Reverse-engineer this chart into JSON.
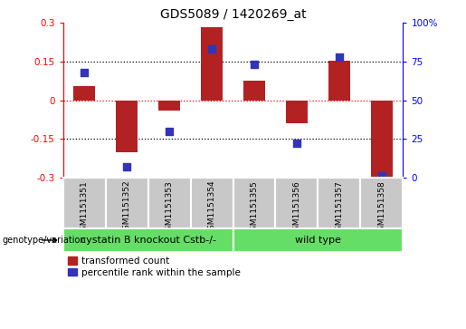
{
  "title": "GDS5089 / 1420269_at",
  "samples": [
    "GSM1151351",
    "GSM1151352",
    "GSM1151353",
    "GSM1151354",
    "GSM1151355",
    "GSM1151356",
    "GSM1151357",
    "GSM1151358"
  ],
  "bar_values": [
    0.055,
    -0.2,
    -0.04,
    0.285,
    0.075,
    -0.09,
    0.155,
    -0.3
  ],
  "dot_values": [
    68,
    7,
    30,
    83,
    73,
    22,
    78,
    1
  ],
  "bar_color": "#b22222",
  "dot_color": "#3333bb",
  "ylim_left": [
    -0.3,
    0.3
  ],
  "ylim_right": [
    0,
    100
  ],
  "yticks_left": [
    -0.3,
    -0.15,
    0.0,
    0.15,
    0.3
  ],
  "yticks_right": [
    0,
    25,
    50,
    75,
    100
  ],
  "group1_label": "cystatin B knockout Cstb-/-",
  "group2_label": "wild type",
  "group1_count": 4,
  "genotype_label": "genotype/variation",
  "legend1_label": "transformed count",
  "legend2_label": "percentile rank within the sample",
  "group_bg_color": "#66dd66",
  "tick_area_bg": "#c8c8c8",
  "bar_width": 0.5,
  "dot_size": 40,
  "title_fontsize": 10,
  "tick_fontsize": 7.5,
  "sample_fontsize": 6.5,
  "group_fontsize": 8,
  "legend_fontsize": 7.5
}
